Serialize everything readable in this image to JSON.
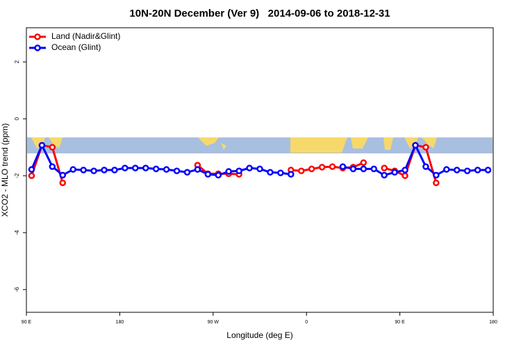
{
  "chart_data": {
    "type": "line",
    "title": "10N-20N December (Ver 9)   2014-09-06 to 2018-12-31",
    "x_label": "Longitude (deg E)",
    "y_label": "XCO2 - MLO trend (ppm)",
    "x": [
      95,
      105,
      115,
      125,
      135,
      145,
      155,
      165,
      175,
      185,
      195,
      205,
      215,
      225,
      235,
      245,
      255,
      265,
      275,
      285,
      295,
      305,
      315,
      325,
      335,
      345,
      355,
      365,
      375,
      385,
      395,
      405,
      415,
      425,
      435,
      445,
      455,
      465,
      475,
      485,
      495,
      505,
      515,
      525,
      535
    ],
    "series": [
      {
        "name": "Land (Nadir&Glint)",
        "color": "#ff0000",
        "values": [
          -2.0,
          -0.93,
          -1.0,
          -2.25,
          null,
          null,
          null,
          null,
          null,
          null,
          null,
          null,
          null,
          null,
          null,
          null,
          -1.63,
          -1.93,
          -1.93,
          -1.93,
          -1.95,
          null,
          null,
          null,
          null,
          -1.8,
          -1.83,
          -1.76,
          -1.7,
          -1.68,
          -1.73,
          -1.7,
          -1.54,
          null,
          -1.73,
          -1.83,
          -2.0,
          -0.93,
          -1.0,
          -2.25,
          null,
          null,
          null,
          null,
          null
        ]
      },
      {
        "name": "Ocean (Glint)",
        "color": "#0000ff",
        "values": [
          -1.78,
          -0.93,
          -1.68,
          -1.98,
          -1.78,
          -1.8,
          -1.83,
          -1.8,
          -1.8,
          -1.73,
          -1.73,
          -1.73,
          -1.76,
          -1.78,
          -1.83,
          -1.88,
          -1.78,
          -1.95,
          -1.98,
          -1.85,
          -1.83,
          -1.73,
          -1.76,
          -1.88,
          -1.9,
          -1.95,
          null,
          null,
          null,
          null,
          -1.68,
          -1.76,
          -1.76,
          -1.76,
          -1.98,
          -1.88,
          -1.8,
          -0.93,
          -1.68,
          -1.98,
          -1.78,
          -1.8,
          -1.83,
          -1.8,
          -1.8
        ]
      }
    ],
    "xlim": [
      90,
      540
    ],
    "xticks": [
      {
        "value": 90,
        "label": "90 E"
      },
      180,
      {
        "value": 270,
        "label": "90 W"
      },
      {
        "value": 360,
        "label": "0"
      },
      {
        "value": 450,
        "label": "90 E"
      },
      {
        "value": 540,
        "label": "180"
      }
    ],
    "ylim": [
      -6.8,
      3.2
    ],
    "yticks": [
      -6,
      -4,
      -2,
      0,
      2
    ],
    "legend": "top-left"
  }
}
